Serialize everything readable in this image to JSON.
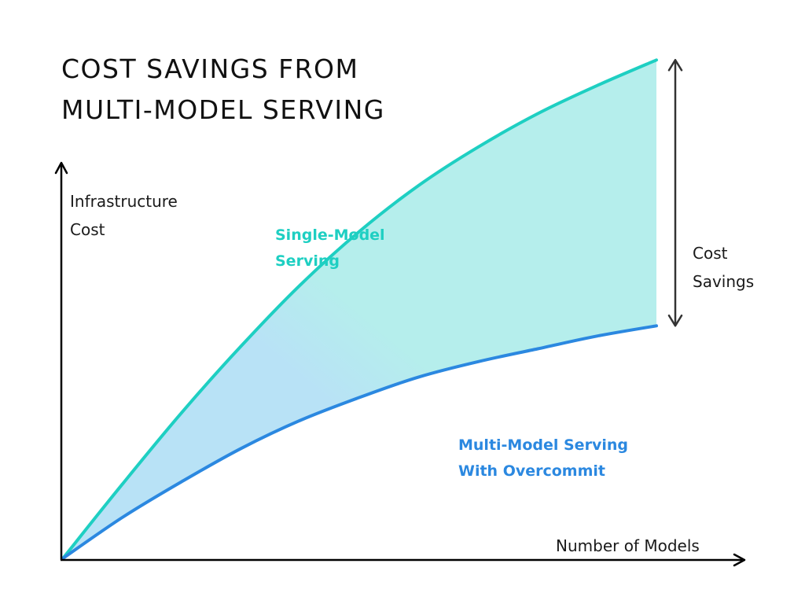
{
  "title": {
    "line1": "COST SAVINGS FROM",
    "line2": "MULTI-MODEL SERVING"
  },
  "chart_data": {
    "type": "area",
    "title": "COST SAVINGS FROM MULTI-MODEL SERVING",
    "ylabel": [
      "Infrastructure",
      "Cost"
    ],
    "xlabel": "Number of Models",
    "x": [
      0,
      10,
      20,
      30,
      40,
      50,
      60,
      70,
      80,
      90,
      100
    ],
    "xlim": [
      0,
      100
    ],
    "ylim": [
      0,
      100
    ],
    "axis_ticks": false,
    "grid": false,
    "series": [
      {
        "name": [
          "Single-Model",
          "Serving"
        ],
        "color": "#1ecfc2",
        "values": [
          0,
          14.5,
          28.5,
          41.5,
          53.5,
          64,
          73,
          80.5,
          87,
          92.5,
          97.5
        ]
      },
      {
        "name": [
          "Multi-Model Serving",
          "With Overcommit"
        ],
        "color": "#2b88e0",
        "values": [
          0,
          8,
          15,
          21.5,
          27,
          31.5,
          35.5,
          38.5,
          41,
          43.5,
          45.5
        ]
      }
    ],
    "fill": {
      "between_series": true,
      "colors": [
        "#b5eeec",
        "#b8e2f6"
      ]
    },
    "annotation": {
      "text": [
        "Cost",
        "Savings"
      ],
      "type": "double-arrow",
      "between": "series end values"
    }
  }
}
